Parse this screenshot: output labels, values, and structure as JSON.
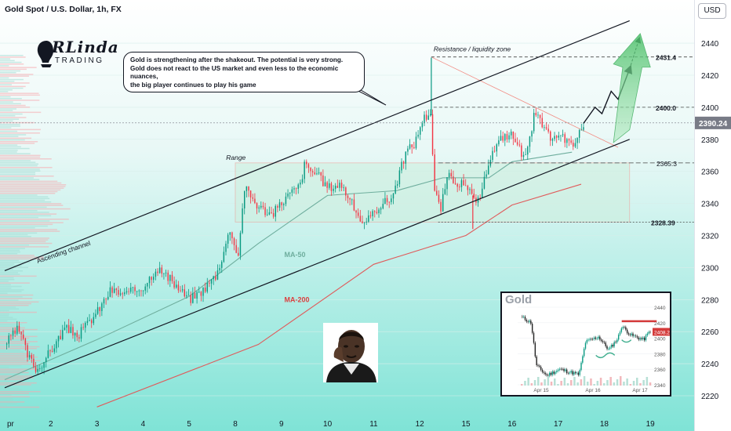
{
  "header": {
    "symbol_title": "Gold Spot / U.S. Dollar, 1h, FX"
  },
  "toolbar": {
    "currency_button": "USD"
  },
  "logo": {
    "main": "RLinda",
    "sub": "TRADING"
  },
  "callout": {
    "text": "Gold is strengthening after the shakeout. The potential is very strong.\nGold does not react to the US market and even less to the economic nuances,\n the big player continues to play his game"
  },
  "annotations": {
    "resistance": "Resistance / liquidity zone",
    "range": "Range",
    "channel": "Ascending channel",
    "ma50": "MA-50",
    "ma200": "MA-200"
  },
  "levels": {
    "l2431": "2431.4",
    "l2400": "2400.0",
    "l2365": "2365.3",
    "l2328": "2328.39",
    "current": "2390.24"
  },
  "colors": {
    "bull": "#089981",
    "bear": "#f23645",
    "ma50": "#6fae9e",
    "ma200": "#e05a5a",
    "range_fill": "#cdeedd",
    "arrow_green": "#5cc27a",
    "bg_top": "#ffffff",
    "bg_bottom": "#7fe3d6"
  },
  "chart_data": {
    "type": "candlestick",
    "title": "Gold Spot / U.S. Dollar, 1h, FX",
    "xlabel": "",
    "ylabel": "",
    "ylim": [
      2213,
      2458
    ],
    "y_ticks": [
      2220,
      2240,
      2260,
      2280,
      2300,
      2320,
      2340,
      2360,
      2380,
      2400,
      2420,
      2440
    ],
    "x_tick_labels": [
      "pr",
      "2",
      "3",
      "4",
      "5",
      "8",
      "9",
      "10",
      "11",
      "12",
      "15",
      "16",
      "17",
      "18",
      "19"
    ],
    "x_tick_days": [
      0.05,
      1,
      2,
      3,
      4,
      5,
      6,
      7,
      8,
      9,
      10,
      11,
      12,
      13,
      14
    ],
    "close_path": [
      [
        0.0,
        2252
      ],
      [
        0.3,
        2262
      ],
      [
        0.5,
        2245
      ],
      [
        0.7,
        2236
      ],
      [
        1.0,
        2248
      ],
      [
        1.3,
        2262
      ],
      [
        1.6,
        2258
      ],
      [
        2.0,
        2272
      ],
      [
        2.3,
        2286
      ],
      [
        2.6,
        2283
      ],
      [
        3.0,
        2288
      ],
      [
        3.3,
        2300
      ],
      [
        3.6,
        2292
      ],
      [
        4.0,
        2280
      ],
      [
        4.3,
        2286
      ],
      [
        4.6,
        2296
      ],
      [
        4.9,
        2325
      ],
      [
        5.05,
        2305
      ],
      [
        5.2,
        2350
      ],
      [
        5.5,
        2338
      ],
      [
        5.8,
        2333
      ],
      [
        6.1,
        2344
      ],
      [
        6.4,
        2351
      ],
      [
        6.5,
        2364
      ],
      [
        6.8,
        2357
      ],
      [
        7.0,
        2350
      ],
      [
        7.3,
        2352
      ],
      [
        7.6,
        2336
      ],
      [
        7.8,
        2326
      ],
      [
        8.1,
        2338
      ],
      [
        8.4,
        2344
      ],
      [
        8.7,
        2372
      ],
      [
        8.9,
        2378
      ],
      [
        9.05,
        2392
      ],
      [
        9.25,
        2398
      ],
      [
        9.3,
        2350
      ],
      [
        9.45,
        2336
      ],
      [
        9.6,
        2357
      ],
      [
        9.9,
        2352
      ],
      [
        10.1,
        2346
      ],
      [
        10.3,
        2340
      ],
      [
        10.5,
        2368
      ],
      [
        10.8,
        2382
      ],
      [
        11.0,
        2383
      ],
      [
        11.2,
        2372
      ],
      [
        11.35,
        2374
      ],
      [
        11.5,
        2398
      ],
      [
        11.7,
        2385
      ],
      [
        11.9,
        2380
      ],
      [
        12.1,
        2382
      ],
      [
        12.3,
        2375
      ],
      [
        12.5,
        2386
      ],
      [
        12.55,
        2390
      ]
    ],
    "ohlc_samples": [
      [
        2249,
        2253,
        2246,
        2251
      ],
      [
        2251,
        2262,
        2249,
        2261
      ],
      [
        2261,
        2264,
        2246,
        2247
      ],
      [
        2247,
        2250,
        2234,
        2237
      ],
      [
        2237,
        2250,
        2235,
        2248
      ],
      [
        2248,
        2265,
        2246,
        2263
      ],
      [
        2263,
        2266,
        2254,
        2257
      ],
      [
        2257,
        2274,
        2256,
        2273
      ],
      [
        2273,
        2289,
        2271,
        2286
      ],
      [
        2286,
        2290,
        2279,
        2283
      ],
      [
        2283,
        2292,
        2281,
        2289
      ],
      [
        2289,
        2304,
        2287,
        2301
      ],
      [
        2301,
        2303,
        2288,
        2291
      ],
      [
        2291,
        2293,
        2276,
        2279
      ],
      [
        2279,
        2289,
        2276,
        2287
      ],
      [
        2287,
        2299,
        2284,
        2297
      ],
      [
        2297,
        2330,
        2294,
        2326
      ],
      [
        2326,
        2329,
        2301,
        2304
      ],
      [
        2304,
        2356,
        2302,
        2352
      ],
      [
        2352,
        2356,
        2334,
        2337
      ],
      [
        2337,
        2340,
        2327,
        2333
      ],
      [
        2333,
        2347,
        2330,
        2345
      ],
      [
        2345,
        2356,
        2342,
        2351
      ],
      [
        2351,
        2367,
        2349,
        2364
      ],
      [
        2364,
        2366,
        2353,
        2356
      ],
      [
        2356,
        2359,
        2346,
        2349
      ],
      [
        2349,
        2356,
        2345,
        2352
      ],
      [
        2352,
        2354,
        2331,
        2335
      ],
      [
        2335,
        2338,
        2319,
        2326
      ],
      [
        2326,
        2341,
        2324,
        2338
      ],
      [
        2338,
        2348,
        2335,
        2344
      ],
      [
        2344,
        2375,
        2342,
        2372
      ],
      [
        2372,
        2381,
        2369,
        2378
      ],
      [
        2378,
        2395,
        2375,
        2392
      ],
      [
        2392,
        2431,
        2389,
        2398
      ],
      [
        2398,
        2401,
        2345,
        2350
      ],
      [
        2350,
        2352,
        2334,
        2336
      ],
      [
        2336,
        2361,
        2334,
        2357
      ],
      [
        2357,
        2360,
        2347,
        2352
      ],
      [
        2352,
        2355,
        2324,
        2346
      ],
      [
        2346,
        2348,
        2336,
        2340
      ],
      [
        2340,
        2371,
        2338,
        2368
      ],
      [
        2368,
        2387,
        2366,
        2382
      ],
      [
        2382,
        2389,
        2378,
        2383
      ],
      [
        2383,
        2385,
        2363,
        2372
      ],
      [
        2372,
        2378,
        2365,
        2374
      ],
      [
        2374,
        2400,
        2372,
        2398
      ],
      [
        2398,
        2400,
        2381,
        2385
      ],
      [
        2385,
        2388,
        2376,
        2380
      ],
      [
        2380,
        2386,
        2377,
        2382
      ],
      [
        2382,
        2384,
        2371,
        2375
      ],
      [
        2375,
        2389,
        2373,
        2386
      ],
      [
        2386,
        2393,
        2384,
        2390
      ]
    ],
    "series": [
      {
        "name": "MA-50",
        "points": [
          [
            0.0,
            2230
          ],
          [
            2,
            2255
          ],
          [
            4,
            2282
          ],
          [
            5.5,
            2315
          ],
          [
            7,
            2345
          ],
          [
            8.5,
            2348
          ],
          [
            9.5,
            2356
          ],
          [
            10.5,
            2356
          ],
          [
            11,
            2366
          ],
          [
            12.3,
            2372
          ]
        ]
      },
      {
        "name": "MA-200",
        "points": [
          [
            2,
            2213
          ],
          [
            5.5,
            2252
          ],
          [
            8,
            2302
          ],
          [
            10,
            2320
          ],
          [
            11,
            2339
          ],
          [
            12.5,
            2352
          ]
        ]
      }
    ],
    "levels": [
      2431.4,
      2400.0,
      2365.3,
      2328.39
    ],
    "current_price": 2390.24,
    "range_box": {
      "x": [
        5.0,
        13.55
      ],
      "y": [
        2328.39,
        2365.3
      ]
    },
    "channel_upper": [
      [
        0.0,
        2298
      ],
      [
        13.55,
        2454
      ]
    ],
    "channel_lower": [
      [
        0.0,
        2225
      ],
      [
        13.55,
        2380
      ]
    ],
    "projection": [
      [
        12.55,
        2390
      ],
      [
        12.8,
        2400
      ],
      [
        12.95,
        2396
      ],
      [
        13.15,
        2410
      ],
      [
        13.3,
        2405
      ],
      [
        13.55,
        2424
      ],
      [
        13.75,
        2431.4
      ]
    ],
    "inset": {
      "title": "Gold",
      "y_ticks": [
        2340,
        2360,
        2380,
        2400,
        2420,
        2440
      ],
      "x_tick_labels": [
        "Apr 15",
        "Apr 16",
        "Apr 17"
      ],
      "resistance": 2422,
      "last_label": "2408.2",
      "close_path": [
        [
          0,
          2428
        ],
        [
          0.08,
          2420
        ],
        [
          0.12,
          2365
        ],
        [
          0.2,
          2352
        ],
        [
          0.3,
          2360
        ],
        [
          0.45,
          2353
        ],
        [
          0.5,
          2395
        ],
        [
          0.6,
          2402
        ],
        [
          0.68,
          2385
        ],
        [
          0.75,
          2400
        ],
        [
          0.78,
          2416
        ],
        [
          0.85,
          2404
        ],
        [
          0.95,
          2398
        ],
        [
          1.0,
          2410
        ]
      ]
    }
  }
}
